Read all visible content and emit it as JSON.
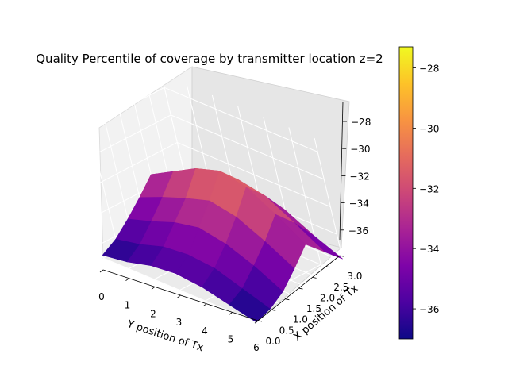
{
  "chart_data": {
    "type": "surface3d",
    "title": "Quality Percentile of coverage by transmitter location z=2",
    "xlabel": "X position of Tx",
    "ylabel": "Y position of Tx",
    "x_ticks": [
      "0.0",
      "0.5",
      "1.0",
      "1.5",
      "2.0",
      "2.5",
      "3.0"
    ],
    "y_ticks": [
      "0",
      "1",
      "2",
      "3",
      "4",
      "5",
      "6"
    ],
    "z_ticks": [
      "−28",
      "−30",
      "−32",
      "−34",
      "−36"
    ],
    "colorbar_ticks": [
      "−28",
      "−30",
      "−32",
      "−34",
      "−36"
    ],
    "x_range": [
      0,
      3
    ],
    "y_range": [
      0,
      6
    ],
    "z_range": [
      -37,
      -27
    ],
    "colorbar_range": [
      -37,
      -27.3
    ],
    "colormap": "plasma",
    "grid": true,
    "x": [
      0,
      0.5,
      1.0,
      1.5,
      2.0,
      2.5,
      3.0
    ],
    "y": [
      0,
      1,
      2,
      3,
      4,
      5,
      6
    ],
    "z": [
      [
        -36.8,
        -36.2,
        -35.3,
        -34.3,
        -33.2,
        -34.2,
        -35.4
      ],
      [
        -36.5,
        -35.8,
        -34.7,
        -33.5,
        -32.2,
        -33.3,
        -34.8
      ],
      [
        -36.0,
        -35.2,
        -34.0,
        -32.8,
        -31.2,
        -32.4,
        -34.0
      ],
      [
        -35.8,
        -35.0,
        -33.6,
        -32.2,
        -30.6,
        -31.8,
        -33.5
      ],
      [
        -36.0,
        -35.2,
        -34.0,
        -32.6,
        -31.0,
        -32.2,
        -33.8
      ],
      [
        -36.5,
        -35.9,
        -34.8,
        -33.6,
        -32.2,
        -33.4,
        -34.9
      ],
      [
        -37.0,
        -36.6,
        -35.9,
        -34.8,
        -33.6,
        -34.7,
        -35.8
      ]
    ]
  }
}
